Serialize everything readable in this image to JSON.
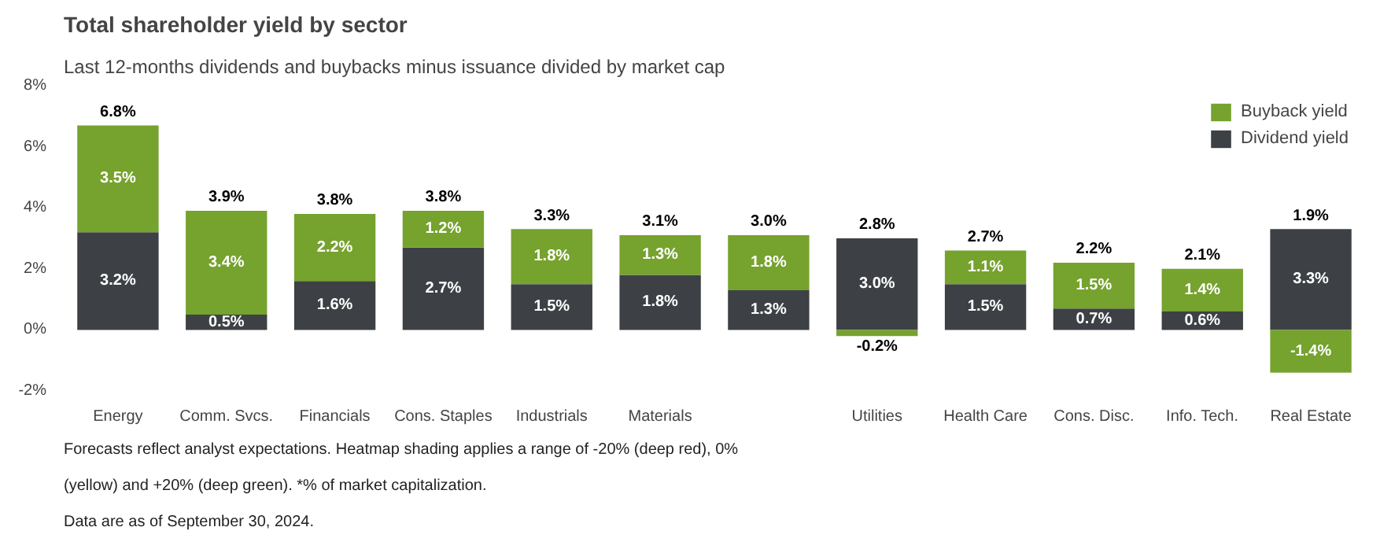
{
  "chart_data": {
    "type": "bar",
    "stacked": true,
    "title": "Total shareholder yield by sector",
    "subtitle": "Last 12-months dividends and buybacks minus issuance divided by market cap",
    "categories": [
      "Energy",
      "Comm. Svcs.",
      "Financials",
      "Cons. Staples",
      "Industrials",
      "Materials",
      null,
      "Utilities",
      "Health Care",
      "Cons. Disc.",
      "Info. Tech.",
      "Real Estate"
    ],
    "series": [
      {
        "name": "Dividend yield",
        "color": "#3d4145",
        "values": [
          3.2,
          0.5,
          1.6,
          2.7,
          1.5,
          1.8,
          1.3,
          3.0,
          1.5,
          0.7,
          0.6,
          3.3
        ],
        "value_labels": [
          "3.2%",
          "0.5%",
          "1.6%",
          "2.7%",
          "1.5%",
          "1.8%",
          "1.3%",
          "3.0%",
          "1.5%",
          "0.7%",
          "0.6%",
          "3.3%"
        ]
      },
      {
        "name": "Buyback yield",
        "color": "#76a22e",
        "values": [
          3.5,
          3.4,
          2.2,
          1.2,
          1.8,
          1.3,
          1.8,
          -0.2,
          1.1,
          1.5,
          1.4,
          -1.4
        ],
        "value_labels": [
          "3.5%",
          "3.4%",
          "2.2%",
          "1.2%",
          "1.8%",
          "1.3%",
          "1.8%",
          "-0.2%",
          "1.1%",
          "1.5%",
          "1.4%",
          "-1.4%"
        ]
      }
    ],
    "totals": [
      "6.8%",
      "3.9%",
      "3.8%",
      "3.8%",
      "3.3%",
      "3.1%",
      "3.0%",
      "2.8%",
      "2.7%",
      "2.2%",
      "2.1%",
      "1.9%"
    ],
    "ylim": [
      -2,
      8
    ],
    "yticks": [
      {
        "value": -2,
        "label": "-2%"
      },
      {
        "value": 0,
        "label": "0%"
      },
      {
        "value": 2,
        "label": "2%"
      },
      {
        "value": 4,
        "label": "4%"
      },
      {
        "value": 6,
        "label": "6%"
      },
      {
        "value": 8,
        "label": "8%"
      }
    ],
    "grid": false,
    "legend": "top right",
    "annotations": [
      "Forecasts reflect analyst expectations. Heatmap shading applies a range of -20% (deep red), 0%",
      "(yellow) and +20% (deep green). *% of market capitalization.",
      "Data are as of September 30, 2024."
    ]
  }
}
